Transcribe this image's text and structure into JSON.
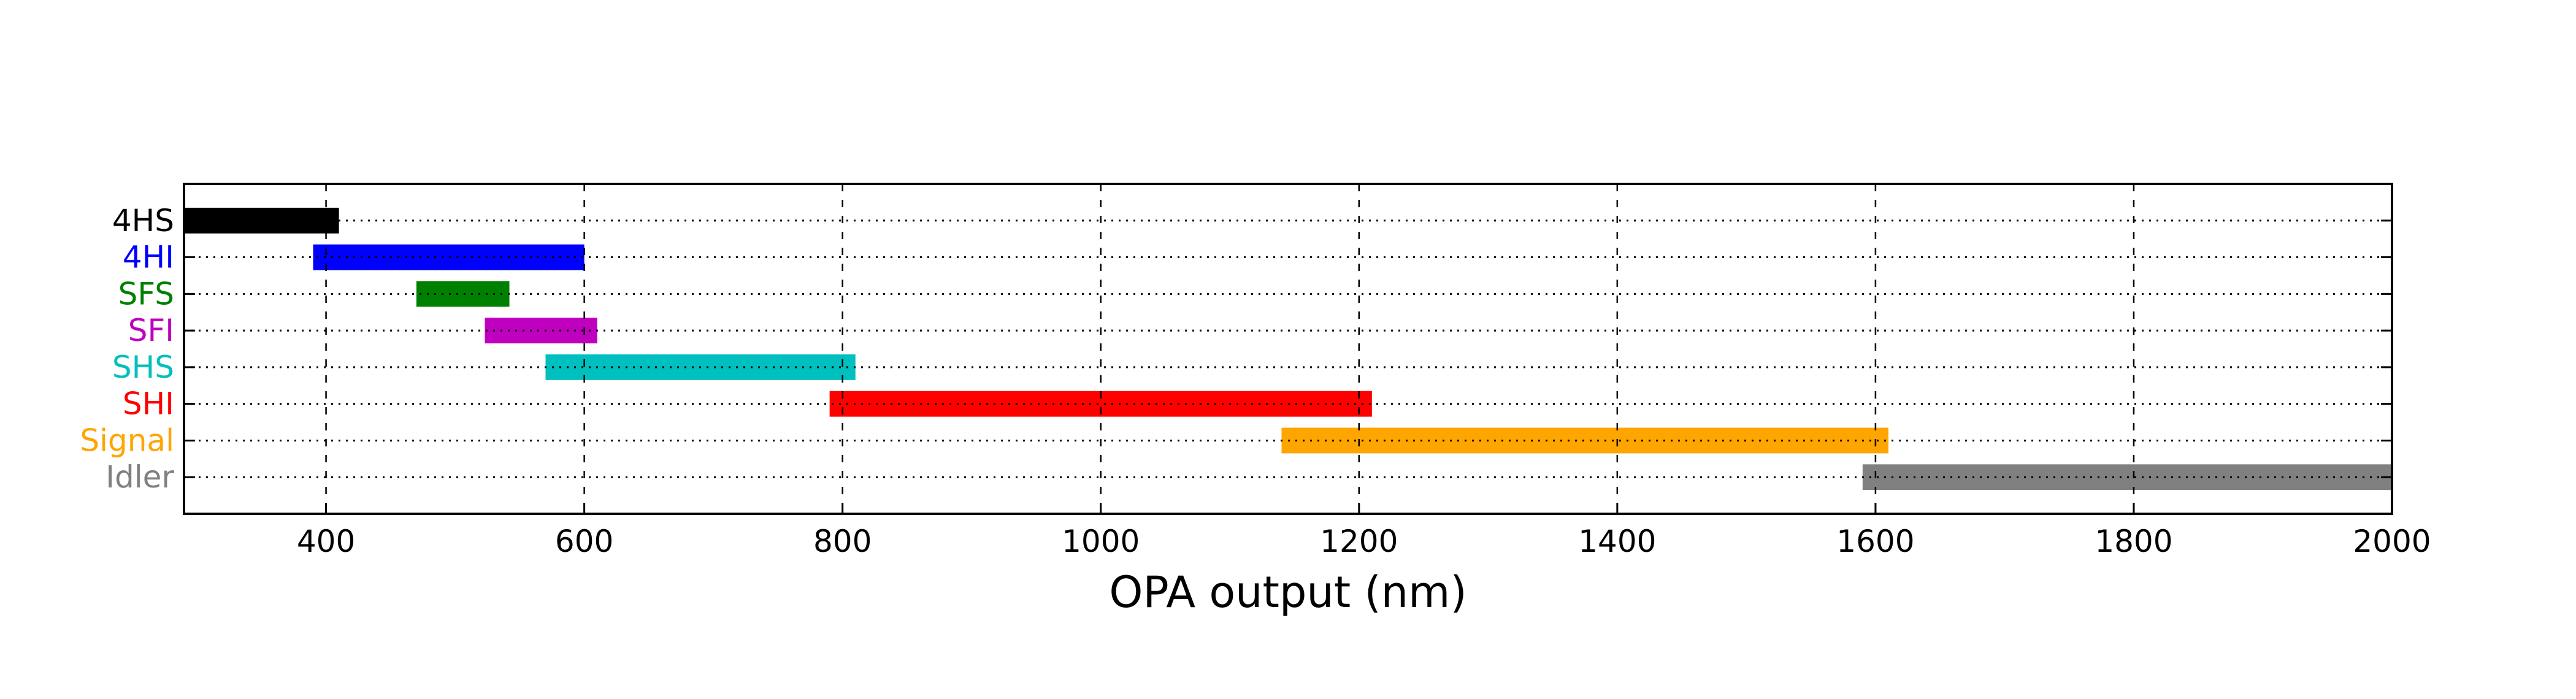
{
  "chart_data": {
    "type": "bar",
    "orientation": "horizontal",
    "title": "",
    "xlabel": "OPA output (nm)",
    "ylabel": "",
    "xlim": [
      290,
      2000
    ],
    "xticks": [
      400,
      600,
      800,
      1000,
      1200,
      1400,
      1600,
      1800,
      2000
    ],
    "grid": true,
    "categories": [
      "4HS",
      "4HI",
      "SFS",
      "SFI",
      "SHS",
      "SHI",
      "Signal",
      "Idler"
    ],
    "ranges": [
      {
        "label": "4HS",
        "start": 290,
        "end": 410,
        "color": "#000000"
      },
      {
        "label": "4HI",
        "start": 390,
        "end": 600,
        "color": "#0000ff"
      },
      {
        "label": "SFS",
        "start": 470,
        "end": 542,
        "color": "#008000"
      },
      {
        "label": "SFI",
        "start": 523,
        "end": 610,
        "color": "#bf00bf"
      },
      {
        "label": "SHS",
        "start": 570,
        "end": 810,
        "color": "#00bfbf"
      },
      {
        "label": "SHI",
        "start": 790,
        "end": 1210,
        "color": "#ff0000"
      },
      {
        "label": "Signal",
        "start": 1140,
        "end": 1610,
        "color": "#ffa500"
      },
      {
        "label": "Idler",
        "start": 1590,
        "end": 2000,
        "color": "#808080"
      }
    ]
  }
}
